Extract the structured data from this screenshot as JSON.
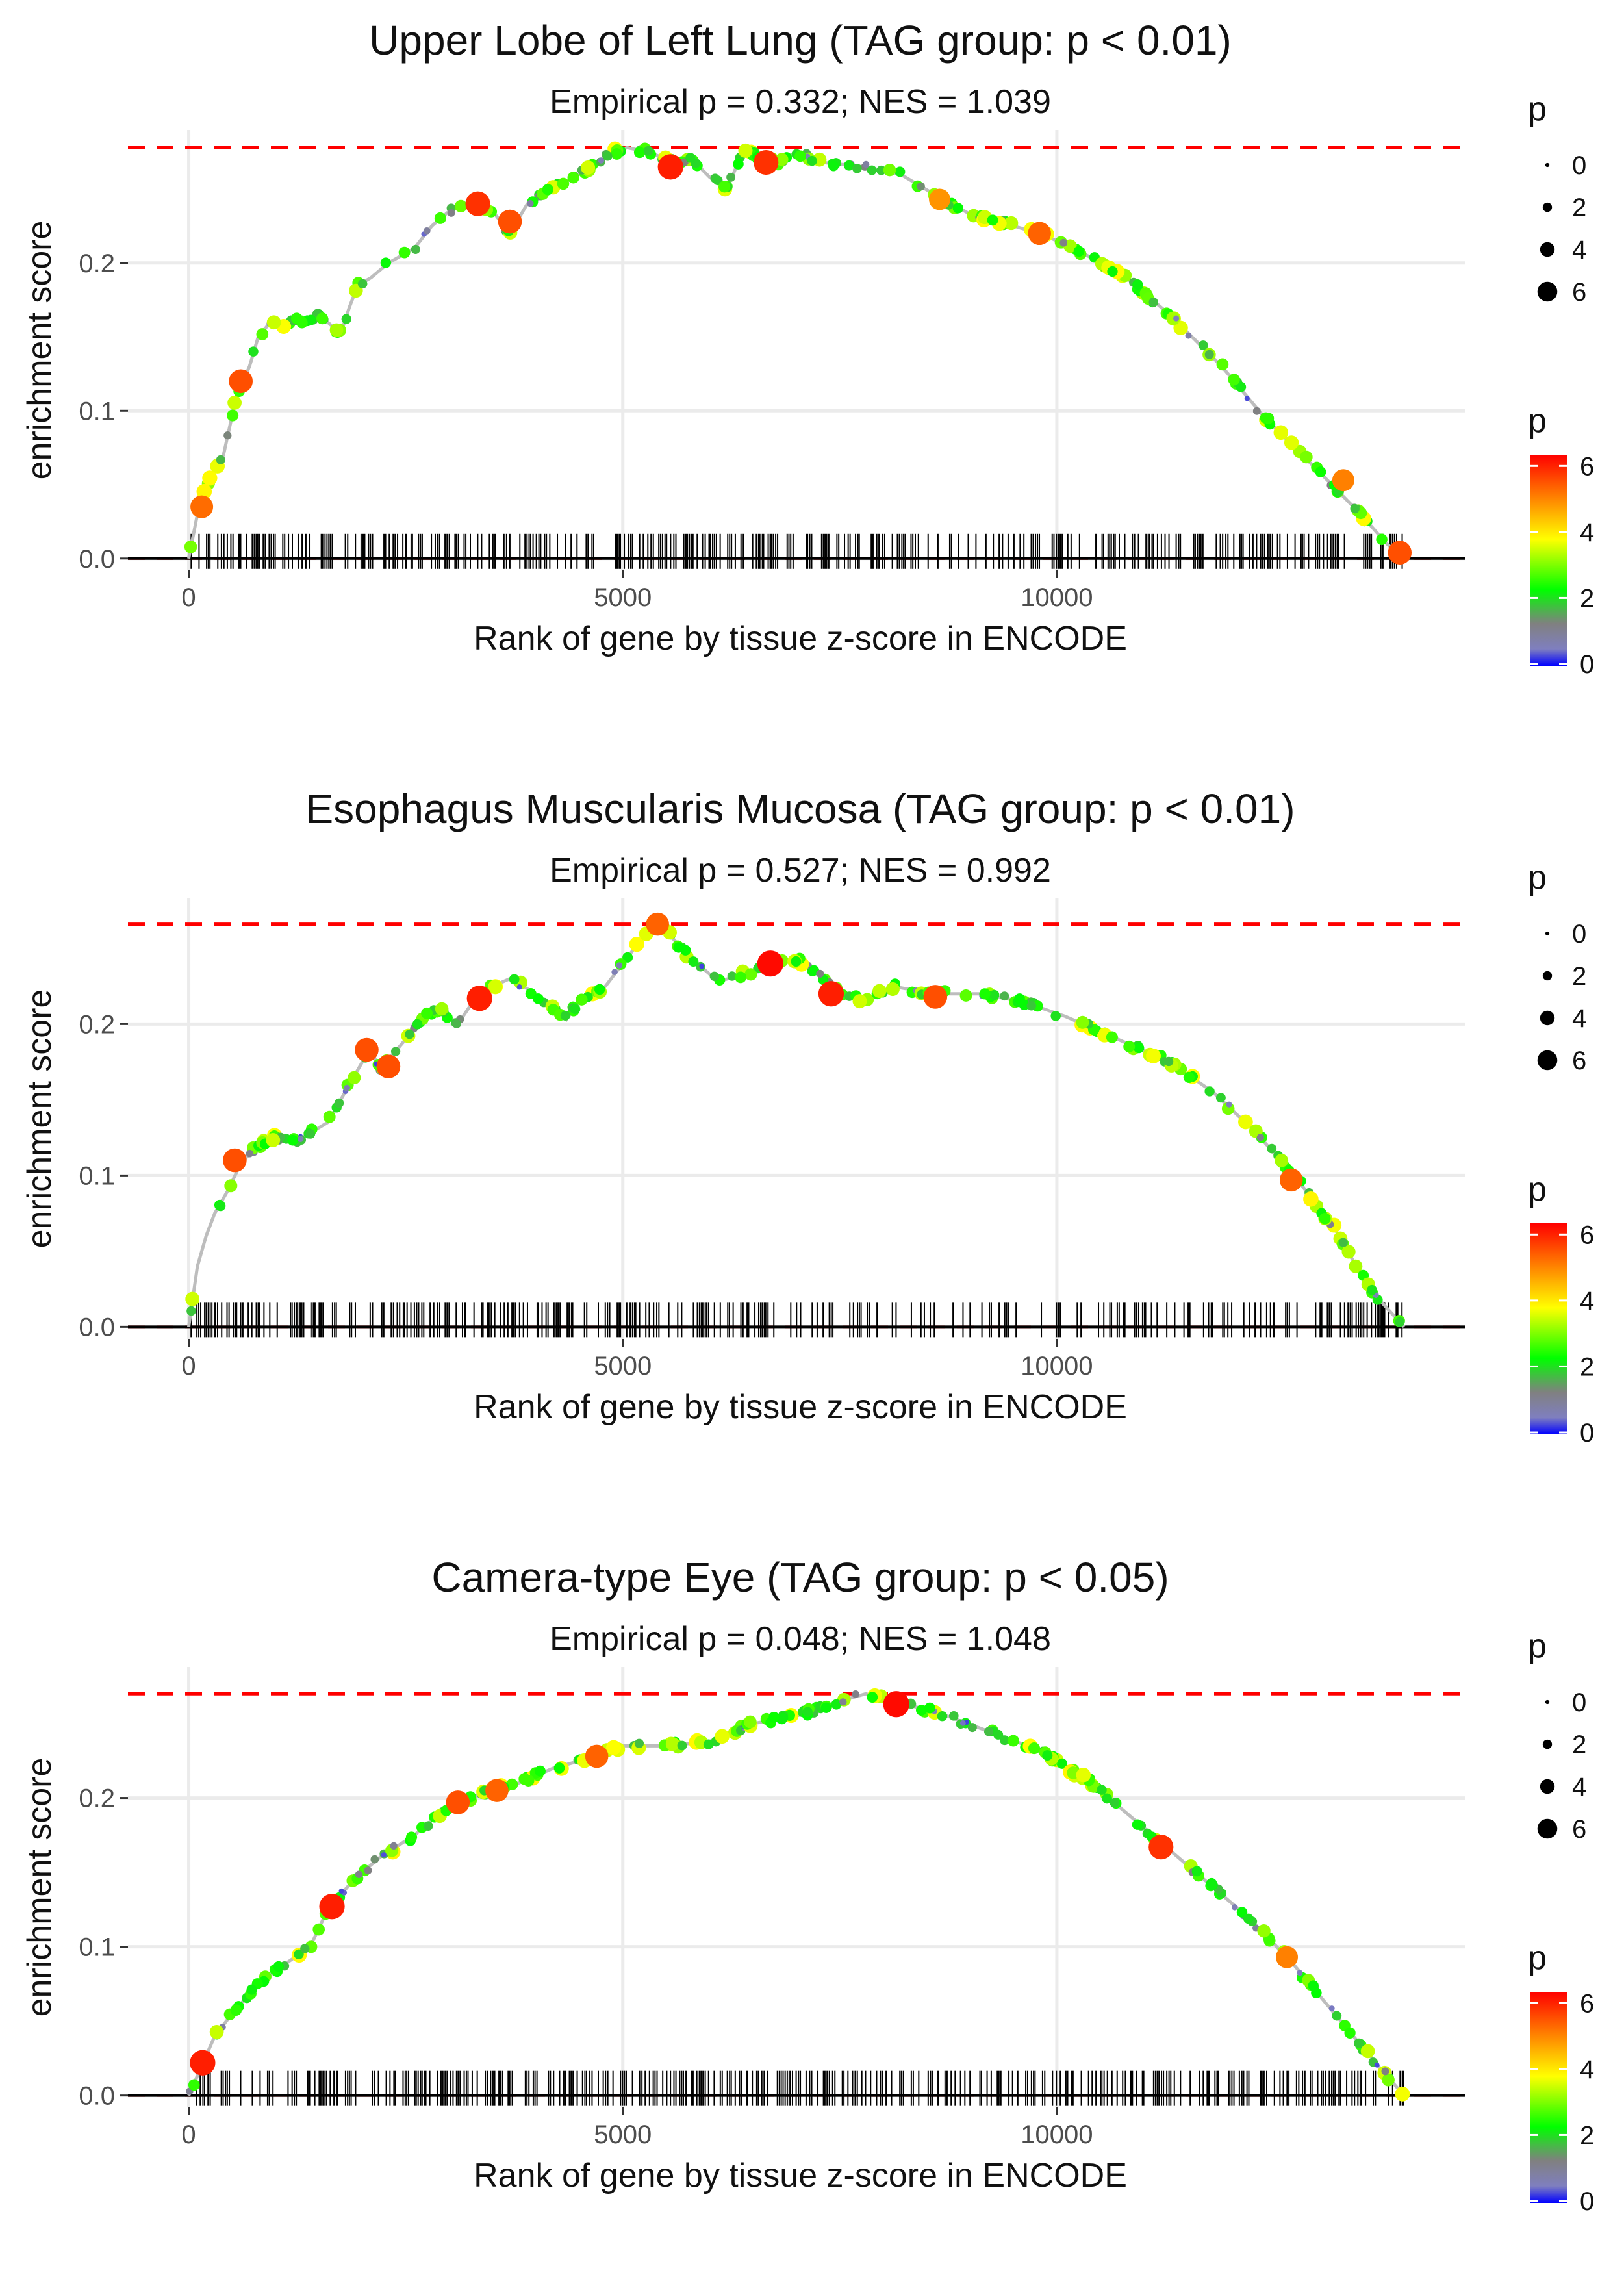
{
  "colors": {
    "grid": "#ebebeb",
    "running_line": "#bdbdbd",
    "max_line": "#ff0000",
    "hit_mark": "#000000",
    "gradient": [
      "#0000ff",
      "#7f7fbf",
      "#808080",
      "#00ff00",
      "#ffff00",
      "#ff8000",
      "#ff0000"
    ]
  },
  "legend": {
    "size_title": "p",
    "size_breaks": [
      "0",
      "2",
      "4",
      "6"
    ],
    "color_title": "p",
    "color_breaks": [
      "6",
      "4",
      "2",
      "0"
    ]
  },
  "chart_data": [
    {
      "type": "line",
      "title": "Upper Lobe of Left Lung (TAG group: p < 0.01)",
      "subtitle": "Empirical p = 0.332; NES = 1.039",
      "xlabel": "Rank of gene by tissue z-score in ENCODE",
      "ylabel": "enrichment score",
      "xlim": [
        -700,
        14700
      ],
      "ylim": [
        -0.008,
        0.29
      ],
      "xticks": [
        0,
        5000,
        10000
      ],
      "xtick_labels": [
        "0",
        "5000",
        "10000"
      ],
      "yticks": [
        0.0,
        0.1,
        0.2
      ],
      "ytick_labels": [
        "0.0",
        "0.1",
        "0.2"
      ],
      "max_es": 0.278,
      "n_genes": 14000,
      "hit_density": [
        1.0,
        1.0,
        0.85,
        0.85
      ],
      "running_es": [
        [
          0,
          0.0
        ],
        [
          100,
          0.03
        ],
        [
          200,
          0.05
        ],
        [
          300,
          0.06
        ],
        [
          400,
          0.07
        ],
        [
          550,
          0.11
        ],
        [
          700,
          0.13
        ],
        [
          800,
          0.15
        ],
        [
          900,
          0.157
        ],
        [
          1000,
          0.16
        ],
        [
          1100,
          0.155
        ],
        [
          1200,
          0.163
        ],
        [
          1350,
          0.16
        ],
        [
          1500,
          0.165
        ],
        [
          1600,
          0.16
        ],
        [
          1750,
          0.152
        ],
        [
          1850,
          0.17
        ],
        [
          1950,
          0.185
        ],
        [
          2100,
          0.19
        ],
        [
          2300,
          0.2
        ],
        [
          2600,
          0.21
        ],
        [
          2800,
          0.225
        ],
        [
          3000,
          0.235
        ],
        [
          3300,
          0.243
        ],
        [
          3500,
          0.235
        ],
        [
          3700,
          0.22
        ],
        [
          3900,
          0.24
        ],
        [
          4200,
          0.25
        ],
        [
          4500,
          0.26
        ],
        [
          4700,
          0.268
        ],
        [
          4900,
          0.275
        ],
        [
          5050,
          0.278
        ],
        [
          5300,
          0.275
        ],
        [
          5600,
          0.268
        ],
        [
          5800,
          0.27
        ],
        [
          6000,
          0.258
        ],
        [
          6200,
          0.25
        ],
        [
          6400,
          0.278
        ],
        [
          6600,
          0.27
        ],
        [
          6800,
          0.268
        ],
        [
          7000,
          0.275
        ],
        [
          7300,
          0.268
        ],
        [
          7800,
          0.265
        ],
        [
          8200,
          0.26
        ],
        [
          8600,
          0.246
        ],
        [
          9000,
          0.233
        ],
        [
          9500,
          0.225
        ],
        [
          9800,
          0.22
        ],
        [
          10200,
          0.21
        ],
        [
          10800,
          0.19
        ],
        [
          11300,
          0.165
        ],
        [
          11900,
          0.13
        ],
        [
          12400,
          0.095
        ],
        [
          13000,
          0.06
        ],
        [
          13500,
          0.03
        ],
        [
          13800,
          0.01
        ],
        [
          14000,
          0.0
        ]
      ],
      "highlights": [
        {
          "x": 150,
          "y": 0.035,
          "p": 5.2
        },
        {
          "x": 600,
          "y": 0.12,
          "p": 5.5
        },
        {
          "x": 3330,
          "y": 0.24,
          "p": 5.8
        },
        {
          "x": 3700,
          "y": 0.228,
          "p": 5.5
        },
        {
          "x": 5550,
          "y": 0.265,
          "p": 6.0
        },
        {
          "x": 6650,
          "y": 0.268,
          "p": 5.8
        },
        {
          "x": 8650,
          "y": 0.243,
          "p": 4.8
        },
        {
          "x": 9800,
          "y": 0.22,
          "p": 5.3
        },
        {
          "x": 13300,
          "y": 0.053,
          "p": 5.0
        },
        {
          "x": 13950,
          "y": 0.004,
          "p": 5.5
        }
      ]
    },
    {
      "type": "line",
      "title": "Esophagus Muscularis Mucosa (TAG group: p < 0.01)",
      "subtitle": "Empirical p = 0.527; NES = 0.992",
      "xlabel": "Rank of gene by tissue z-score in ENCODE",
      "ylabel": "enrichment score",
      "xlim": [
        -700,
        14700
      ],
      "ylim": [
        -0.008,
        0.283
      ],
      "xticks": [
        0,
        5000,
        10000
      ],
      "xtick_labels": [
        "0",
        "5000",
        "10000"
      ],
      "yticks": [
        0.0,
        0.1,
        0.2
      ],
      "ytick_labels": [
        "0.0",
        "0.1",
        "0.2"
      ],
      "max_es": 0.266,
      "n_genes": 14000,
      "hit_density": [
        1.0,
        1.0,
        0.55,
        0.9
      ],
      "running_es": [
        [
          0,
          0.0
        ],
        [
          100,
          0.04
        ],
        [
          200,
          0.06
        ],
        [
          300,
          0.075
        ],
        [
          450,
          0.09
        ],
        [
          600,
          0.108
        ],
        [
          800,
          0.12
        ],
        [
          1000,
          0.125
        ],
        [
          1200,
          0.122
        ],
        [
          1400,
          0.128
        ],
        [
          1600,
          0.135
        ],
        [
          1800,
          0.155
        ],
        [
          2000,
          0.175
        ],
        [
          2100,
          0.183
        ],
        [
          2200,
          0.17
        ],
        [
          2500,
          0.19
        ],
        [
          2700,
          0.205
        ],
        [
          2900,
          0.21
        ],
        [
          3100,
          0.2
        ],
        [
          3300,
          0.217
        ],
        [
          3500,
          0.225
        ],
        [
          3700,
          0.23
        ],
        [
          4000,
          0.22
        ],
        [
          4350,
          0.203
        ],
        [
          4500,
          0.215
        ],
        [
          4800,
          0.225
        ],
        [
          5000,
          0.24
        ],
        [
          5200,
          0.255
        ],
        [
          5400,
          0.266
        ],
        [
          5500,
          0.262
        ],
        [
          5700,
          0.248
        ],
        [
          6100,
          0.228
        ],
        [
          6500,
          0.235
        ],
        [
          6800,
          0.24
        ],
        [
          7000,
          0.243
        ],
        [
          7200,
          0.235
        ],
        [
          7500,
          0.22
        ],
        [
          7800,
          0.215
        ],
        [
          8100,
          0.225
        ],
        [
          8600,
          0.22
        ],
        [
          9100,
          0.22
        ],
        [
          9600,
          0.215
        ],
        [
          10100,
          0.205
        ],
        [
          10700,
          0.19
        ],
        [
          11300,
          0.175
        ],
        [
          11800,
          0.155
        ],
        [
          12300,
          0.128
        ],
        [
          12800,
          0.095
        ],
        [
          13200,
          0.065
        ],
        [
          13600,
          0.025
        ],
        [
          14000,
          0.0
        ]
      ],
      "highlights": [
        {
          "x": 530,
          "y": 0.11,
          "p": 5.5
        },
        {
          "x": 2050,
          "y": 0.183,
          "p": 5.5
        },
        {
          "x": 2300,
          "y": 0.172,
          "p": 5.5
        },
        {
          "x": 3350,
          "y": 0.217,
          "p": 6.0
        },
        {
          "x": 5400,
          "y": 0.266,
          "p": 5.3
        },
        {
          "x": 6700,
          "y": 0.24,
          "p": 6.2
        },
        {
          "x": 7400,
          "y": 0.22,
          "p": 6.0
        },
        {
          "x": 8600,
          "y": 0.218,
          "p": 5.5
        },
        {
          "x": 12700,
          "y": 0.097,
          "p": 5.3
        }
      ]
    },
    {
      "type": "line",
      "title": "Camera-type Eye (TAG group: p < 0.05)",
      "subtitle": "Empirical p = 0.048; NES = 1.048",
      "xlabel": "Rank of gene by tissue z-score in ENCODE",
      "ylabel": "enrichment score",
      "xlim": [
        -700,
        14700
      ],
      "ylim": [
        -0.008,
        0.288
      ],
      "xticks": [
        0,
        5000,
        10000
      ],
      "xtick_labels": [
        "0",
        "5000",
        "10000"
      ],
      "yticks": [
        0.0,
        0.1,
        0.2
      ],
      "ytick_labels": [
        "0.0",
        "0.1",
        "0.2"
      ],
      "max_es": 0.27,
      "n_genes": 14000,
      "hit_density": [
        1.0,
        1.0,
        1.0,
        1.0
      ],
      "running_es": [
        [
          0,
          0.0
        ],
        [
          150,
          0.02
        ],
        [
          300,
          0.04
        ],
        [
          500,
          0.055
        ],
        [
          800,
          0.075
        ],
        [
          1100,
          0.088
        ],
        [
          1400,
          0.1
        ],
        [
          1600,
          0.125
        ],
        [
          1900,
          0.145
        ],
        [
          2200,
          0.16
        ],
        [
          2600,
          0.175
        ],
        [
          3000,
          0.195
        ],
        [
          3400,
          0.203
        ],
        [
          3800,
          0.21
        ],
        [
          4200,
          0.22
        ],
        [
          4700,
          0.228
        ],
        [
          5000,
          0.235
        ],
        [
          5500,
          0.235
        ],
        [
          6000,
          0.238
        ],
        [
          6500,
          0.25
        ],
        [
          7000,
          0.255
        ],
        [
          7500,
          0.265
        ],
        [
          7800,
          0.27
        ],
        [
          8100,
          0.265
        ],
        [
          8600,
          0.258
        ],
        [
          9200,
          0.245
        ],
        [
          9800,
          0.232
        ],
        [
          10400,
          0.21
        ],
        [
          11000,
          0.18
        ],
        [
          11600,
          0.15
        ],
        [
          12200,
          0.12
        ],
        [
          12700,
          0.09
        ],
        [
          13200,
          0.055
        ],
        [
          13700,
          0.02
        ],
        [
          14000,
          0.0
        ]
      ],
      "highlights": [
        {
          "x": 160,
          "y": 0.022,
          "p": 6.0
        },
        {
          "x": 1650,
          "y": 0.127,
          "p": 6.0
        },
        {
          "x": 3100,
          "y": 0.197,
          "p": 5.5
        },
        {
          "x": 3550,
          "y": 0.205,
          "p": 5.3
        },
        {
          "x": 4700,
          "y": 0.228,
          "p": 5.3
        },
        {
          "x": 8150,
          "y": 0.263,
          "p": 6.2
        },
        {
          "x": 11200,
          "y": 0.167,
          "p": 5.8
        },
        {
          "x": 12650,
          "y": 0.093,
          "p": 5.0
        }
      ]
    }
  ]
}
